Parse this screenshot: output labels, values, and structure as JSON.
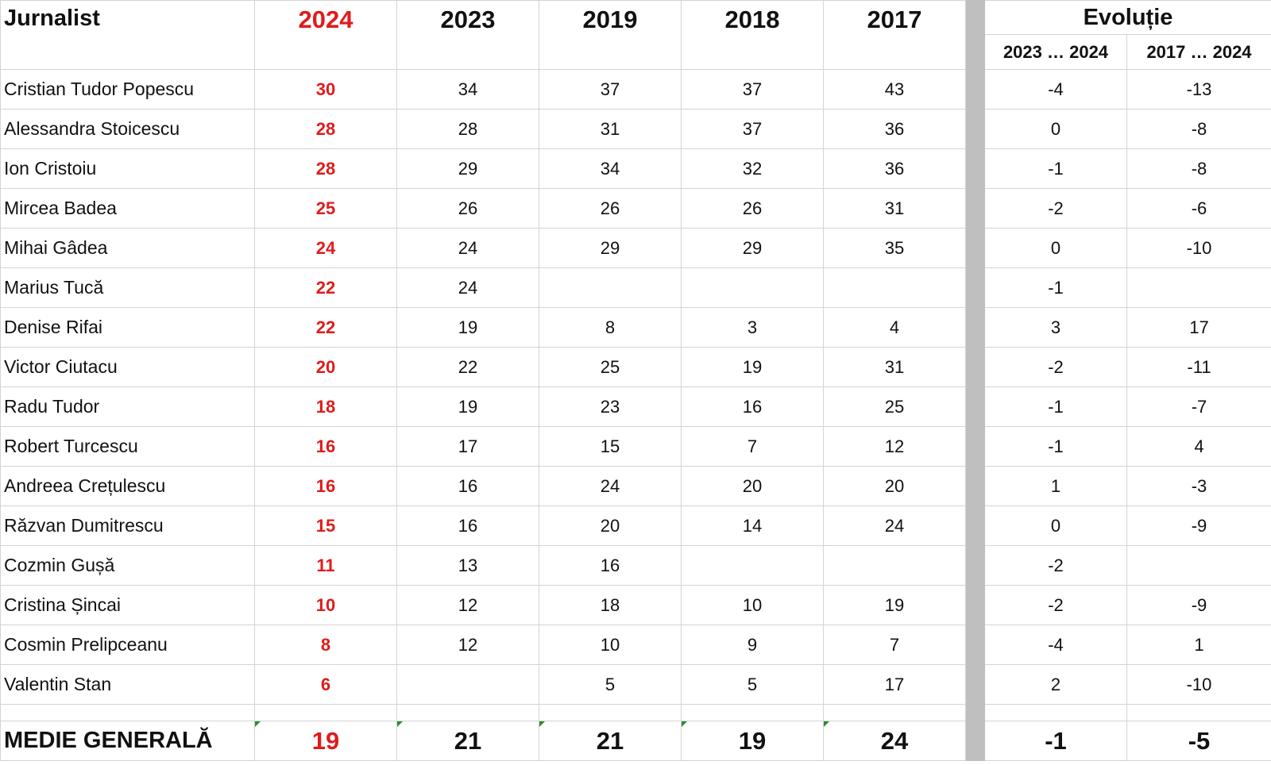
{
  "header": {
    "name": "Jurnalist",
    "years": [
      "2024",
      "2023",
      "2019",
      "2018",
      "2017"
    ],
    "evolution": "Evoluție",
    "evolution_sub": [
      "2023 … 2024",
      "2017 … 2024"
    ]
  },
  "rows": [
    {
      "name": "Cristian Tudor Popescu",
      "values": [
        "30",
        "34",
        "37",
        "37",
        "43"
      ],
      "evol": [
        "-4",
        "-13"
      ]
    },
    {
      "name": "Alessandra Stoicescu",
      "values": [
        "28",
        "28",
        "31",
        "37",
        "36"
      ],
      "evol": [
        "0",
        "-8"
      ]
    },
    {
      "name": "Ion Cristoiu",
      "values": [
        "28",
        "29",
        "34",
        "32",
        "36"
      ],
      "evol": [
        "-1",
        "-8"
      ]
    },
    {
      "name": "Mircea Badea",
      "values": [
        "25",
        "26",
        "26",
        "26",
        "31"
      ],
      "evol": [
        "-2",
        "-6"
      ]
    },
    {
      "name": "Mihai Gâdea",
      "values": [
        "24",
        "24",
        "29",
        "29",
        "35"
      ],
      "evol": [
        "0",
        "-10"
      ]
    },
    {
      "name": "Marius Tucă",
      "values": [
        "22",
        "24",
        "",
        "",
        ""
      ],
      "evol": [
        "-1",
        ""
      ]
    },
    {
      "name": "Denise Rifai",
      "values": [
        "22",
        "19",
        "8",
        "3",
        "4"
      ],
      "evol": [
        "3",
        "17"
      ]
    },
    {
      "name": "Victor Ciutacu",
      "values": [
        "20",
        "22",
        "25",
        "19",
        "31"
      ],
      "evol": [
        "-2",
        "-11"
      ]
    },
    {
      "name": "Radu Tudor",
      "values": [
        "18",
        "19",
        "23",
        "16",
        "25"
      ],
      "evol": [
        "-1",
        "-7"
      ]
    },
    {
      "name": "Robert Turcescu",
      "values": [
        "16",
        "17",
        "15",
        "7",
        "12"
      ],
      "evol": [
        "-1",
        "4"
      ]
    },
    {
      "name": "Andreea Crețulescu",
      "values": [
        "16",
        "16",
        "24",
        "20",
        "20"
      ],
      "evol": [
        "1",
        "-3"
      ]
    },
    {
      "name": "Răzvan Dumitrescu",
      "values": [
        "15",
        "16",
        "20",
        "14",
        "24"
      ],
      "evol": [
        "0",
        "-9"
      ]
    },
    {
      "name": "Cozmin Gușă",
      "values": [
        "11",
        "13",
        "16",
        "",
        ""
      ],
      "evol": [
        "-2",
        ""
      ]
    },
    {
      "name": "Cristina Șincai",
      "values": [
        "10",
        "12",
        "18",
        "10",
        "19"
      ],
      "evol": [
        "-2",
        "-9"
      ]
    },
    {
      "name": "Cosmin Prelipceanu",
      "values": [
        "8",
        "12",
        "10",
        "9",
        "7"
      ],
      "evol": [
        "-4",
        "1"
      ]
    },
    {
      "name": "Valentin Stan",
      "values": [
        "6",
        "",
        "5",
        "5",
        "17"
      ],
      "evol": [
        "2",
        "-10"
      ]
    }
  ],
  "average": {
    "name": "MEDIE GENERALĂ",
    "values": [
      "19",
      "21",
      "21",
      "19",
      "24"
    ],
    "evol": [
      "-1",
      "-5"
    ]
  },
  "colors": {
    "highlight_year": "#e01b1b",
    "separator": "#bfbfbf",
    "grid": "#d4d4d4",
    "corner_marker": "#2e8b2e"
  }
}
